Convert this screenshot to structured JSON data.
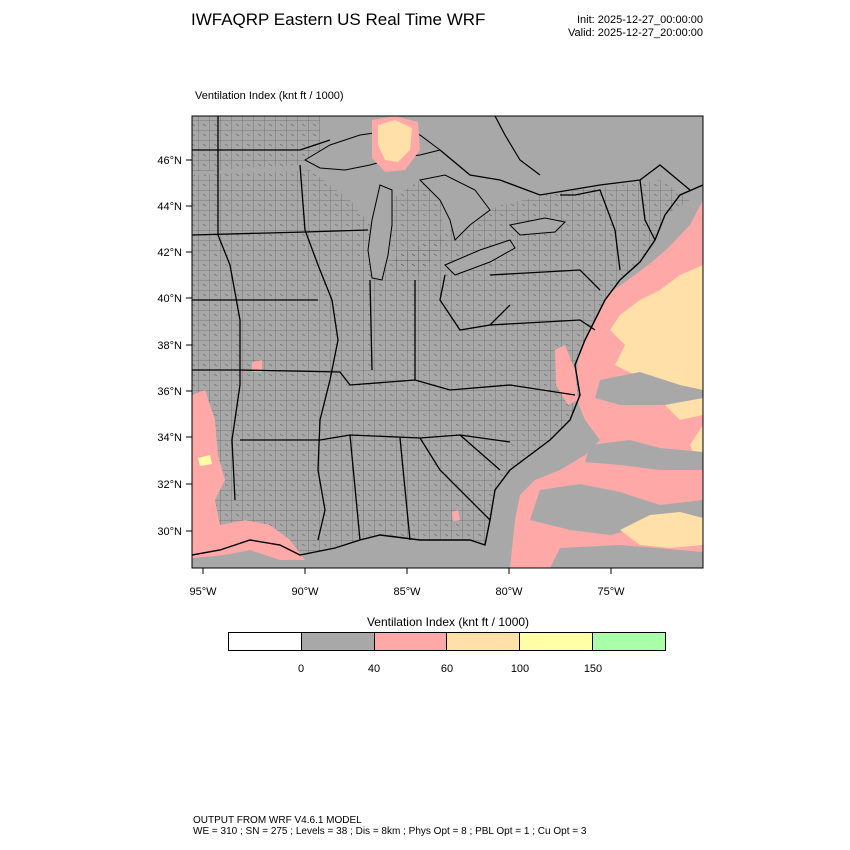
{
  "header": {
    "title": "IWFAQRP Eastern US Real Time WRF",
    "init": "Init: 2025-12-27_00:00:00",
    "valid": "Valid: 2025-12-27_20:00:00"
  },
  "panel": {
    "label": "Ventilation Index   (knt ft / 1000)"
  },
  "map": {
    "lat_labels": [
      "46°N",
      "44°N",
      "42°N",
      "40°N",
      "38°N",
      "36°N",
      "34°N",
      "32°N",
      "30°N"
    ],
    "lon_labels": [
      "95°W",
      "90°W",
      "85°W",
      "80°W",
      "75°W"
    ],
    "colors": {
      "land": "#a8a8a8",
      "pink": "#ffa8a8",
      "orange": "#ffe0a8",
      "yellow": "#ffffa8",
      "border": "#000000"
    }
  },
  "colorbar": {
    "title": "Ventilation Index  (knt ft / 1000)",
    "colors": [
      "#ffffff",
      "#a8a8a8",
      "#ffa8a8",
      "#ffe0a8",
      "#ffffa8",
      "#a8ffa8"
    ],
    "ticks": [
      "0",
      "40",
      "60",
      "100",
      "150"
    ]
  },
  "footer": {
    "line1": "OUTPUT FROM WRF V4.6.1 MODEL",
    "line2": "WE = 310 ; SN = 275 ; Levels = 38 ; Dis = 8km ; Phys Opt = 8 ; PBL Opt = 1 ; Cu Opt = 3"
  }
}
